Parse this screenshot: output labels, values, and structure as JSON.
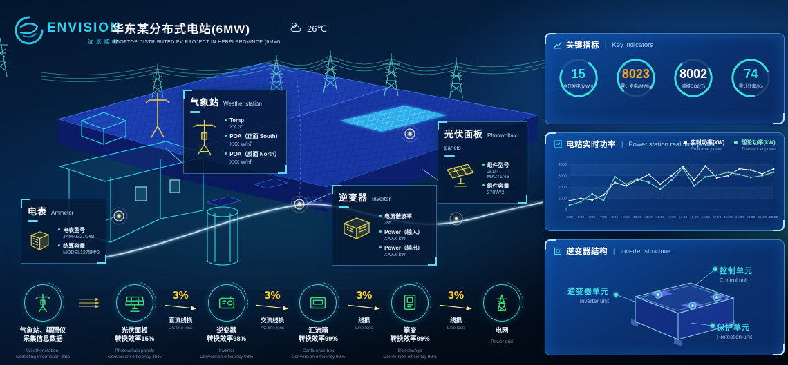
{
  "header": {
    "brand": "ENVISION",
    "brand_cn": "远景能源",
    "title": "华东某分布式电站(6MW)",
    "subtitle": "ROOFTOP DISTRIBUTED PV PROJECT IN HEBEI PROVINCE (6MW)",
    "temperature": "26℃"
  },
  "scene": {
    "callouts": [
      {
        "title_cn": "气象站",
        "title_en": "Weather station",
        "items": [
          {
            "label": "Temp",
            "value": "XX ℃"
          },
          {
            "label": "POA（正面 South）",
            "value": "XXX W/㎡"
          },
          {
            "label": "POA（反面 North）",
            "value": "XXX W/㎡"
          }
        ]
      },
      {
        "title_cn": "光伏面板",
        "title_en": "Photovoltaic panels",
        "items": [
          {
            "label": "组件型号",
            "value": "JKM-MX271/4B"
          },
          {
            "label": "组件容量",
            "value": "270W*2"
          }
        ]
      },
      {
        "title_cn": "逆变器",
        "title_en": "Inverter",
        "items": [
          {
            "label": "电流谐波率",
            "value": "3%"
          },
          {
            "label": "Power（输入）",
            "value": "XXXX kW"
          },
          {
            "label": "Power（输出）",
            "value": "XXXX kW"
          }
        ]
      },
      {
        "title_cn": "电表",
        "title_en": "Ammeter",
        "items": [
          {
            "label": "电表型号",
            "value": "JKM-0227U4B"
          },
          {
            "label": "结算容量",
            "value": "MODEL1275M*2"
          }
        ]
      }
    ]
  },
  "key_indicators": {
    "title_cn": "关键指标",
    "title_en": "Key indicators",
    "gauges": [
      {
        "value": "15",
        "label": "今日发电(MWh)",
        "color": "#35e2db"
      },
      {
        "value": "8023",
        "label": "累计发电(MWh)",
        "color": "#f7a827"
      },
      {
        "value": "8002",
        "label": "减排CO2(T)",
        "color": "#ffffff"
      },
      {
        "value": "74",
        "label": "累计效率(%)",
        "color": "#35e2db"
      }
    ]
  },
  "realtime_power": {
    "title_cn": "电站实时功率",
    "title_en": "Power station real time power"
  },
  "chart_data": {
    "type": "line",
    "title": "电站实时功率 | Power station real time power",
    "x": [
      "4:00",
      "5:00",
      "6:00",
      "7:00",
      "8:00",
      "9:00",
      "10:00",
      "11:00",
      "12:00",
      "13:00",
      "14:00",
      "15:00",
      "16:00",
      "17:00",
      "18:00",
      "19:00",
      "20:00",
      "21:00",
      "22:00"
    ],
    "series": [
      {
        "name": "实时功率(kW)",
        "name_en": "Real time power",
        "color": "#ffffff",
        "values": [
          800,
          1000,
          850,
          1300,
          2400,
          2100,
          2600,
          3100,
          2250,
          3000,
          3800,
          2600,
          3850,
          2800,
          3000,
          3600,
          3500,
          3150,
          3600
        ]
      },
      {
        "name": "理论功率(kW)",
        "name_en": "Theoretical power",
        "color": "#7fe9c3",
        "values": [
          400,
          700,
          1400,
          800,
          2900,
          2250,
          2700,
          2400,
          1800,
          2600,
          3650,
          2100,
          2900,
          3050,
          3300,
          3100,
          2850,
          3000,
          3300
        ]
      }
    ],
    "xlabel": "",
    "ylabel": "",
    "ylim": [
      0,
      4000
    ],
    "yticks": [
      "0",
      "1000",
      "2000",
      "3000",
      "4000"
    ],
    "legend_position": "top-right",
    "grid": "horizontal-bands"
  },
  "inverter_structure": {
    "title_cn": "逆变器结构",
    "title_en": "Inverter structure",
    "labels": [
      {
        "cn": "逆变器单元",
        "en": "Inverter unit"
      },
      {
        "cn": "控制单元",
        "en": "Control unit"
      },
      {
        "cn": "保护单元",
        "en": "Protection unit"
      }
    ]
  },
  "flow": {
    "steps": [
      {
        "label_cn": "气象站、辐照仪",
        "label_cn2": "采集信息数据",
        "label_en": "Weather station,",
        "label_en2": "Collecting information data"
      },
      {
        "label_cn": "光伏面板",
        "label_cn2": "转换效率15%",
        "label_en": "Photovoltaic panels",
        "label_en2": "Conversion efficiency 15%"
      },
      {
        "label_cn": "逆变器",
        "label_cn2": "转换效率98%",
        "label_en": "Inverter",
        "label_en2": "Conversion efficiency 98%"
      },
      {
        "label_cn": "汇流箱",
        "label_cn2": "转换效率99%",
        "label_en": "Confluence box",
        "label_en2": "Conversion efficiency 99%"
      },
      {
        "label_cn": "箱变",
        "label_cn2": "转换效率99%",
        "label_en": "Box change",
        "label_en2": "Conversion efficiency 99%"
      },
      {
        "label_cn": "电网",
        "label_cn2": "",
        "label_en": "Power grid",
        "label_en2": ""
      }
    ],
    "arrows": [
      {
        "percent": "",
        "label_cn": "",
        "label_en": ""
      },
      {
        "percent": "3%",
        "label_cn": "直流线损",
        "label_en": "DC line loss"
      },
      {
        "percent": "3%",
        "label_cn": "交流线损",
        "label_en": "AC line loss"
      },
      {
        "percent": "3%",
        "label_cn": "线损",
        "label_en": "Line loss"
      },
      {
        "percent": "3%",
        "label_cn": "线损",
        "label_en": "Line loss"
      }
    ]
  }
}
